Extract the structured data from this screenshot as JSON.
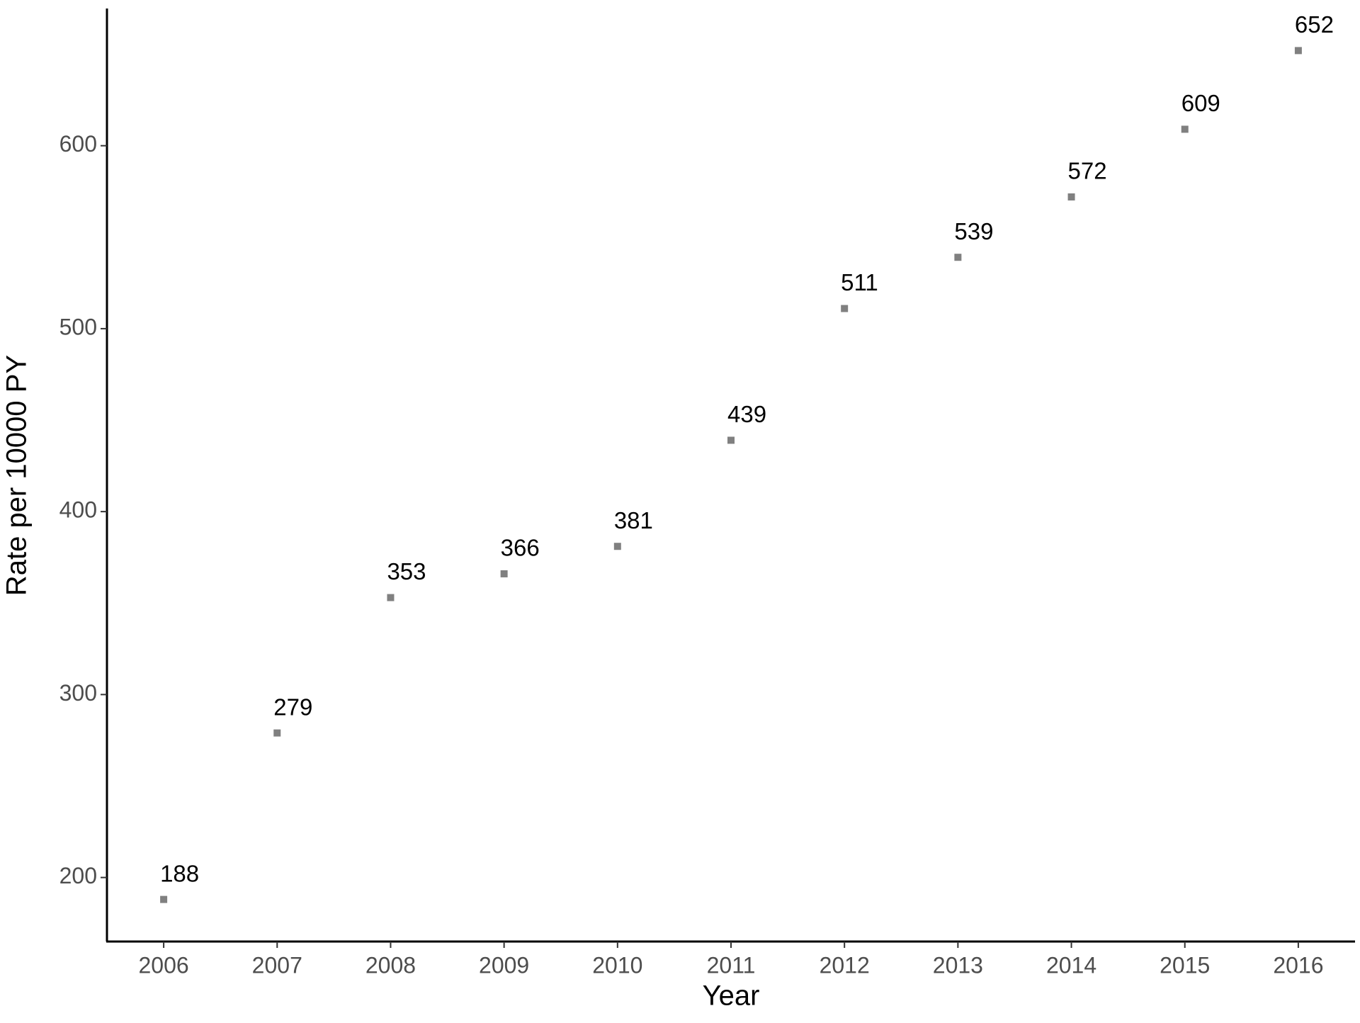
{
  "chart_data": {
    "type": "scatter",
    "x_label": "Year",
    "y_label": "Rate per 10000 PY",
    "x": [
      2006,
      2007,
      2008,
      2009,
      2010,
      2011,
      2012,
      2013,
      2014,
      2015,
      2016
    ],
    "values": [
      188,
      279,
      353,
      366,
      381,
      439,
      511,
      539,
      572,
      609,
      652
    ],
    "color": "#808080",
    "xlim": [
      2005.5,
      2016.5
    ],
    "xticks": [
      2006,
      2007,
      2008,
      2009,
      2010,
      2011,
      2012,
      2013,
      2014,
      2015,
      2016
    ],
    "ylim": [
      165,
      675
    ],
    "yticks": [
      200,
      300,
      400,
      500,
      600
    ],
    "grid": false
  }
}
